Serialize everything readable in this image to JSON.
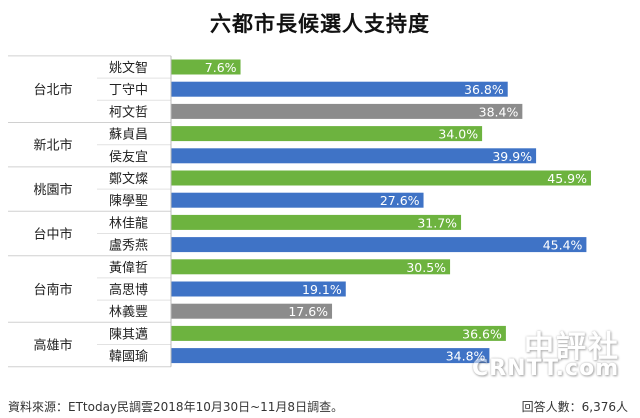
{
  "chart_data": {
    "type": "bar",
    "orientation": "horizontal",
    "title": "六都市長候選人支持度",
    "unit": "%",
    "xlim": [
      0,
      50
    ],
    "grid": false,
    "legend": "none",
    "colors": {
      "green": "#6db33f",
      "blue": "#3f73c6",
      "gray": "#8c8c8c"
    },
    "groups": [
      {
        "city": "台北市",
        "candidates": [
          {
            "name": "姚文智",
            "value": 7.6,
            "label": "7.6%",
            "color": "green"
          },
          {
            "name": "丁守中",
            "value": 36.8,
            "label": "36.8%",
            "color": "blue"
          },
          {
            "name": "柯文哲",
            "value": 38.4,
            "label": "38.4%",
            "color": "gray"
          }
        ]
      },
      {
        "city": "新北市",
        "candidates": [
          {
            "name": "蘇貞昌",
            "value": 34.0,
            "label": "34.0%",
            "color": "green"
          },
          {
            "name": "侯友宜",
            "value": 39.9,
            "label": "39.9%",
            "color": "blue"
          }
        ]
      },
      {
        "city": "桃園市",
        "candidates": [
          {
            "name": "鄭文燦",
            "value": 45.9,
            "label": "45.9%",
            "color": "green"
          },
          {
            "name": "陳學聖",
            "value": 27.6,
            "label": "27.6%",
            "color": "blue"
          }
        ]
      },
      {
        "city": "台中市",
        "candidates": [
          {
            "name": "林佳龍",
            "value": 31.7,
            "label": "31.7%",
            "color": "green"
          },
          {
            "name": "盧秀燕",
            "value": 45.4,
            "label": "45.4%",
            "color": "blue"
          }
        ]
      },
      {
        "city": "台南市",
        "candidates": [
          {
            "name": "黃偉哲",
            "value": 30.5,
            "label": "30.5%",
            "color": "green"
          },
          {
            "name": "高思博",
            "value": 19.1,
            "label": "19.1%",
            "color": "blue"
          },
          {
            "name": "林義豐",
            "value": 17.6,
            "label": "17.6%",
            "color": "gray"
          }
        ]
      },
      {
        "city": "高雄市",
        "candidates": [
          {
            "name": "陳其邁",
            "value": 36.6,
            "label": "36.6%",
            "color": "green"
          },
          {
            "name": "韓國瑜",
            "value": 34.8,
            "label": "34.8%",
            "color": "blue"
          }
        ]
      }
    ]
  },
  "footer": {
    "source": "資料來源：ETtoday民調雲2018年10月30日~11月8日調查。",
    "respondents": "回答人數：6,376人"
  },
  "watermark": {
    "top": "中評社",
    "bottom": "CRNTT.com"
  }
}
